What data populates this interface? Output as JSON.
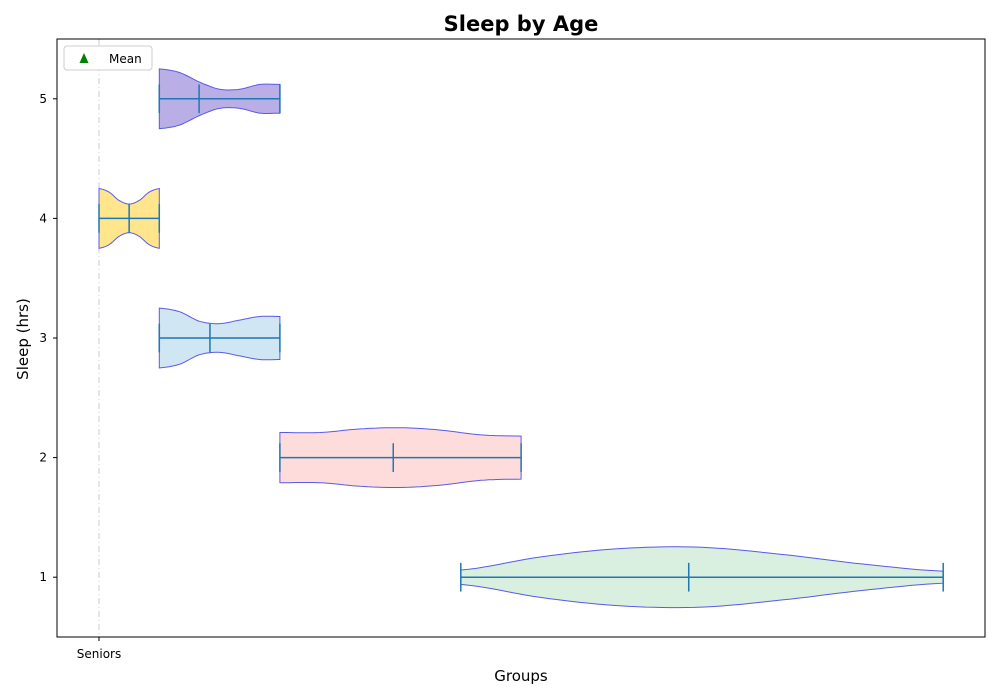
{
  "chart_data": {
    "type": "violin",
    "orientation": "horizontal",
    "title": "Sleep by Age",
    "xlabel": "Groups",
    "ylabel": "Sleep (hrs)",
    "x_tick_labels": [
      "Seniors"
    ],
    "y_ticks": [
      1,
      2,
      3,
      4,
      5
    ],
    "ylim": [
      0.5,
      5.5
    ],
    "legend": {
      "entries": [
        "Mean"
      ],
      "placement": "top-left",
      "marker_color": "#008000"
    },
    "grid": {
      "x": true,
      "y": false,
      "style": "dashdot",
      "color": "#cccccc"
    },
    "violin_edge_color": "#5a5ae6",
    "line_color": "#1f77b4",
    "series": [
      {
        "position": 5,
        "fill": "#b9aee6",
        "x_min": 0.5,
        "x_max": 1.5,
        "x_center": 0.83,
        "widths": [
          0.25,
          0.22,
          0.14,
          0.08,
          0.08,
          0.12,
          0.12
        ]
      },
      {
        "position": 4,
        "fill": "#ffe68c",
        "x_min": 0.0,
        "x_max": 0.5,
        "x_center": 0.25,
        "widths": [
          0.25,
          0.22,
          0.15,
          0.12,
          0.15,
          0.22,
          0.25
        ]
      },
      {
        "position": 3,
        "fill": "#d0e6f2",
        "x_min": 0.5,
        "x_max": 1.5,
        "x_center": 0.92,
        "widths": [
          0.25,
          0.22,
          0.14,
          0.12,
          0.15,
          0.18,
          0.18
        ]
      },
      {
        "position": 2,
        "fill": "#ffdcdc",
        "x_min": 1.5,
        "x_max": 3.5,
        "x_center": 2.44,
        "widths": [
          0.21,
          0.21,
          0.24,
          0.25,
          0.23,
          0.19,
          0.18
        ]
      },
      {
        "position": 1,
        "fill": "#d9efdf",
        "x_min": 3.0,
        "x_max": 7.0,
        "x_center": 4.89,
        "widths": [
          0.06,
          0.17,
          0.24,
          0.25,
          0.19,
          0.11,
          0.05
        ]
      }
    ]
  }
}
